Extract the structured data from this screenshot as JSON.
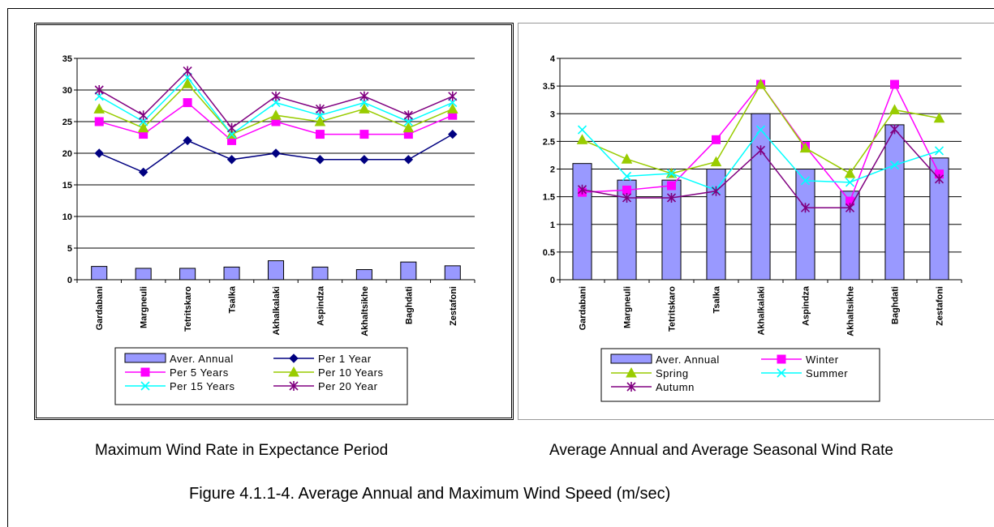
{
  "captions": {
    "left": "Maximum Wind Rate in Expectance Period",
    "right": "Average Annual and Average Seasonal Wind Rate",
    "figure": "Figure 4.1.1-4.  Average Annual and Maximum Wind Speed (m/sec)"
  },
  "chart_data": [
    {
      "type": "bar",
      "title": "",
      "xlabel": "",
      "ylabel": "",
      "ylim": [
        0,
        35
      ],
      "yticks": [
        "0",
        "5",
        "10",
        "15",
        "20",
        "25",
        "30",
        "35"
      ],
      "grid": true,
      "legend_position": "bottom",
      "categories": [
        "Gardabani",
        "Margneuli",
        "Tetritskaro",
        "Tsalka",
        "Akhalkalaki",
        "Aspindza",
        "Akhaltsikhe",
        "Baghdati",
        "Zestafoni"
      ],
      "series": [
        {
          "name": "Aver. Annual",
          "kind": "bar",
          "color": "#9999ff",
          "marker": "none",
          "values": [
            2.1,
            1.8,
            1.8,
            2.0,
            3.0,
            2.0,
            1.6,
            2.8,
            2.2
          ]
        },
        {
          "name": "Per 1 Year",
          "kind": "line",
          "color": "#000080",
          "marker": "diamond",
          "values": [
            20,
            17,
            22,
            19,
            20,
            19,
            19,
            19,
            23
          ]
        },
        {
          "name": "Per 5 Years",
          "kind": "line",
          "color": "#ff00ff",
          "marker": "square",
          "values": [
            25,
            23,
            28,
            22,
            25,
            23,
            23,
            23,
            26
          ]
        },
        {
          "name": "Per 10 Years",
          "kind": "line",
          "color": "#99cc00",
          "marker": "triangle",
          "values": [
            27,
            24,
            31,
            23,
            26,
            25,
            27,
            24,
            27
          ]
        },
        {
          "name": "Per 15 Years",
          "kind": "line",
          "color": "#00ffff",
          "marker": "x",
          "values": [
            29,
            25,
            32,
            23,
            28,
            26,
            28,
            25,
            28
          ]
        },
        {
          "name": "Per 20 Year",
          "kind": "line",
          "color": "#800080",
          "marker": "star",
          "values": [
            30,
            26,
            33,
            24,
            29,
            27,
            29,
            26,
            29
          ]
        }
      ]
    },
    {
      "type": "bar",
      "title": "",
      "xlabel": "",
      "ylabel": "",
      "ylim": [
        0,
        4
      ],
      "yticks": [
        "0",
        "0.5",
        "1",
        "1.5",
        "2",
        "2.5",
        "3",
        "3.5",
        "4"
      ],
      "grid": true,
      "legend_position": "bottom",
      "categories": [
        "Gardabani",
        "Margneuli",
        "Tetritskaro",
        "Tsalka",
        "Akhalkalaki",
        "Aspindza",
        "Akhaltsikhe",
        "Baghdati",
        "Zestafoni"
      ],
      "series": [
        {
          "name": "Aver. Annual",
          "kind": "bar",
          "color": "#9999ff",
          "marker": "none",
          "values": [
            2.1,
            1.8,
            1.8,
            2.0,
            3.0,
            2.0,
            1.6,
            2.8,
            2.2
          ]
        },
        {
          "name": "Winter",
          "kind": "line",
          "color": "#ff00ff",
          "marker": "square",
          "values": [
            1.58,
            1.62,
            1.7,
            2.53,
            3.53,
            2.41,
            1.42,
            3.53,
            1.91
          ]
        },
        {
          "name": "Spring",
          "kind": "line",
          "color": "#99cc00",
          "marker": "triangle",
          "values": [
            2.53,
            2.18,
            1.92,
            2.13,
            3.53,
            2.38,
            1.92,
            3.07,
            2.92
          ]
        },
        {
          "name": "Summer",
          "kind": "line",
          "color": "#00ffff",
          "marker": "x",
          "values": [
            2.71,
            1.87,
            1.92,
            1.62,
            2.71,
            1.79,
            1.76,
            2.07,
            2.33
          ]
        },
        {
          "name": "Autumn",
          "kind": "line",
          "color": "#800080",
          "marker": "star",
          "values": [
            1.63,
            1.48,
            1.48,
            1.6,
            2.34,
            1.3,
            1.3,
            2.72,
            1.82
          ]
        }
      ]
    }
  ]
}
